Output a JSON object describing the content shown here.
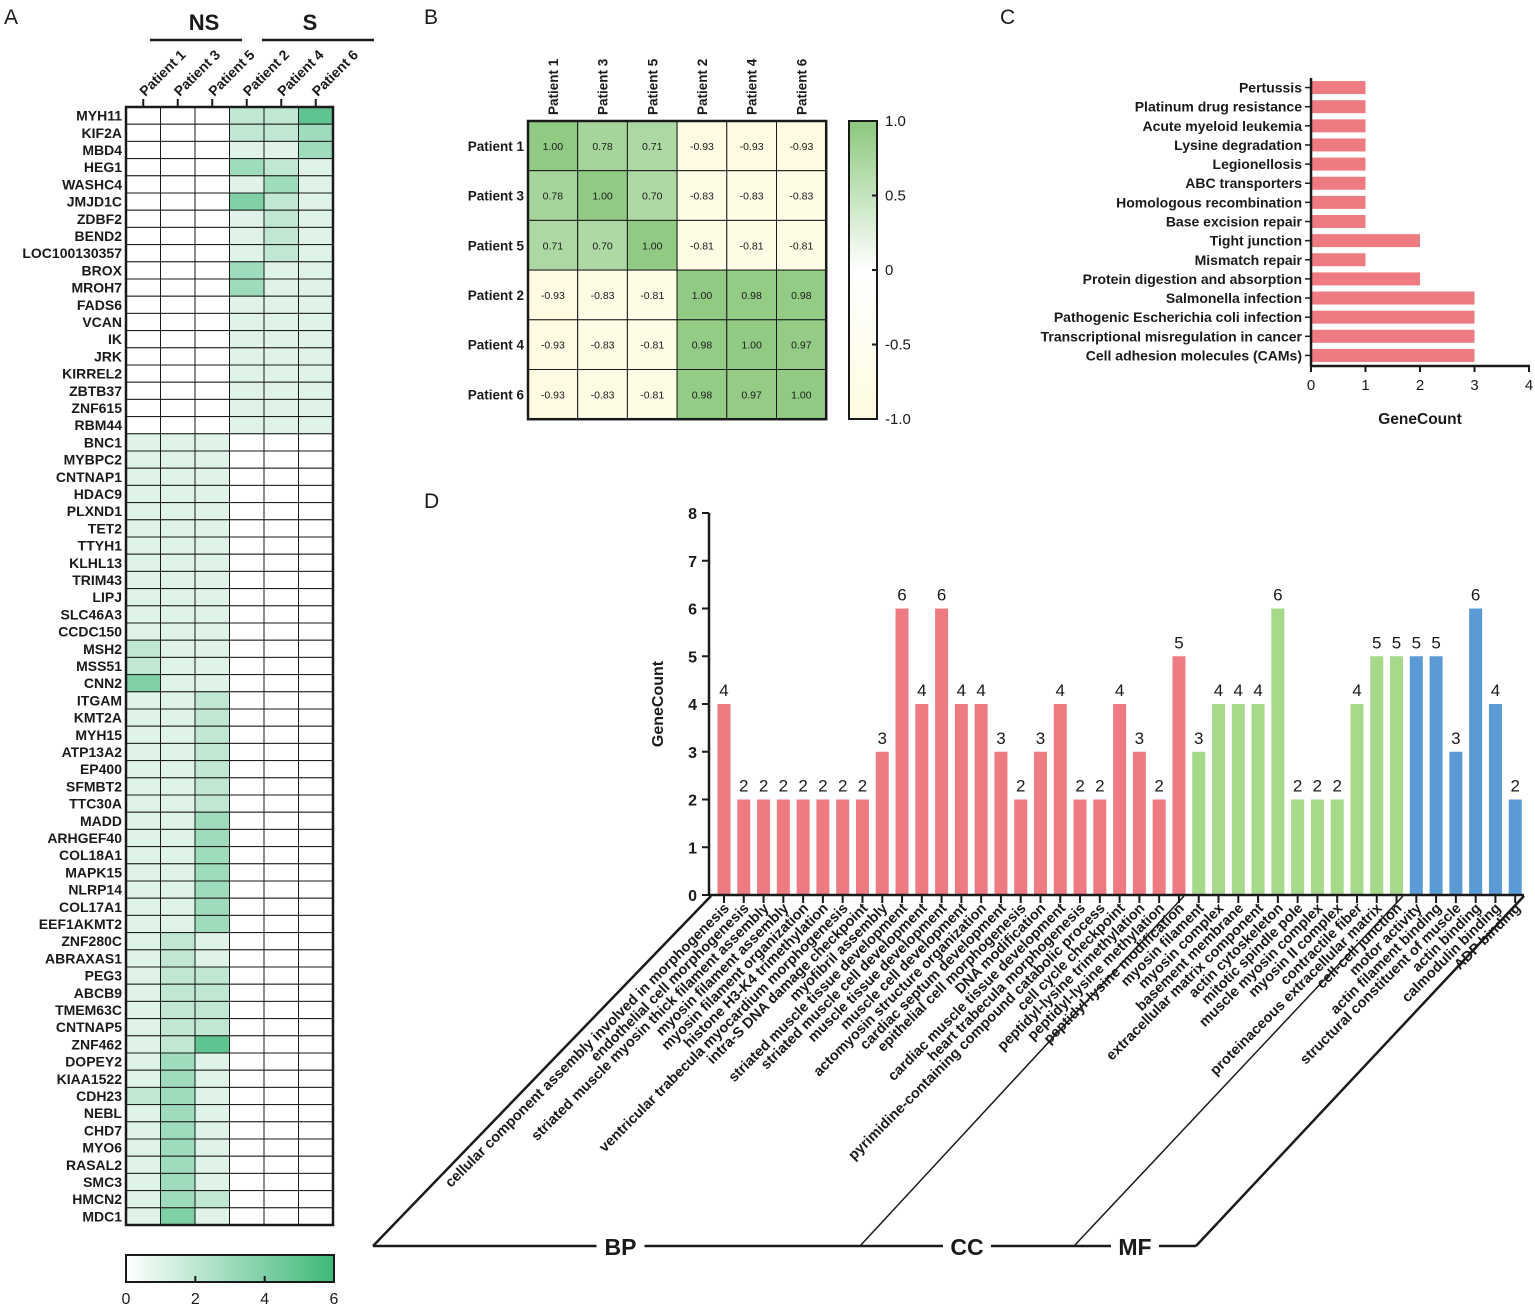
{
  "panels": {
    "a": "A",
    "b": "B",
    "c": "C",
    "d": "D"
  },
  "chart_data": [
    {
      "type": "heatmap",
      "panel": "A",
      "groups": [
        {
          "label": "NS",
          "columns": [
            "Patient 1",
            "Patient 3",
            "Patient 5"
          ]
        },
        {
          "label": "S",
          "columns": [
            "Patient 2",
            "Patient 4",
            "Patient 6"
          ]
        }
      ],
      "columns": [
        "Patient 1",
        "Patient 3",
        "Patient 5",
        "Patient 2",
        "Patient 4",
        "Patient 6"
      ],
      "rows": [
        "MYH11",
        "KIF2A",
        "MBD4",
        "HEG1",
        "WASHC4",
        "JMJD1C",
        "ZDBF2",
        "BEND2",
        "LOC100130357",
        "BROX",
        "MROH7",
        "FADS6",
        "VCAN",
        "IK",
        "JRK",
        "KIRREL2",
        "ZBTB37",
        "ZNF615",
        "RBM44",
        "BNC1",
        "MYBPC2",
        "CNTNAP1",
        "HDAC9",
        "PLXND1",
        "TET2",
        "TTYH1",
        "KLHL13",
        "TRIM43",
        "LIPJ",
        "SLC46A3",
        "CCDC150",
        "MSH2",
        "MSS51",
        "CNN2",
        "ITGAM",
        "KMT2A",
        "MYH15",
        "ATP13A2",
        "EP400",
        "SFMBT2",
        "TTC30A",
        "MADD",
        "ARHGEF40",
        "COL18A1",
        "MAPK15",
        "NLRP14",
        "COL17A1",
        "EEF1AKMT2",
        "ZNF280C",
        "ABRAXAS1",
        "PEG3",
        "ABCB9",
        "TMEM63C",
        "CNTNAP5",
        "ZNF462",
        "DOPEY2",
        "KIAA1522",
        "CDH23",
        "NEBL",
        "CHD7",
        "MYO6",
        "RASAL2",
        "SMC3",
        "HMCN2",
        "MDC1"
      ],
      "values": [
        [
          0,
          0,
          0,
          2,
          2,
          5
        ],
        [
          0,
          0,
          0,
          2,
          2,
          3
        ],
        [
          0,
          0,
          0,
          1,
          1,
          3
        ],
        [
          0,
          0,
          0,
          3,
          2,
          1
        ],
        [
          0,
          0,
          0,
          1,
          3,
          1
        ],
        [
          0,
          0,
          0,
          4,
          2,
          1
        ],
        [
          0,
          0,
          0,
          1,
          2,
          1
        ],
        [
          0,
          0,
          0,
          1,
          2,
          1
        ],
        [
          0,
          0,
          0,
          1,
          2,
          1
        ],
        [
          0,
          0,
          0,
          3,
          1,
          1
        ],
        [
          0,
          0,
          0,
          3,
          1,
          1
        ],
        [
          0,
          0,
          0,
          1,
          1,
          1
        ],
        [
          0,
          0,
          0,
          1,
          1,
          1
        ],
        [
          0,
          0,
          0,
          1,
          1,
          1
        ],
        [
          0,
          0,
          0,
          1,
          1,
          1
        ],
        [
          0,
          0,
          0,
          1,
          1,
          1
        ],
        [
          0,
          0,
          0,
          1,
          1,
          1
        ],
        [
          0,
          0,
          0,
          1,
          1,
          1
        ],
        [
          0,
          0,
          0,
          1,
          1,
          1
        ],
        [
          1,
          1,
          1,
          0,
          0,
          0
        ],
        [
          1,
          1,
          1,
          0,
          0,
          0
        ],
        [
          1,
          1,
          1,
          0,
          0,
          0
        ],
        [
          1,
          1,
          1,
          0,
          0,
          0
        ],
        [
          1,
          1,
          1,
          0,
          0,
          0
        ],
        [
          1,
          1,
          1,
          0,
          0,
          0
        ],
        [
          1,
          1,
          1,
          0,
          0,
          0
        ],
        [
          1,
          1,
          1,
          0,
          0,
          0
        ],
        [
          1,
          1,
          1,
          0,
          0,
          0
        ],
        [
          1,
          1,
          1,
          0,
          0,
          0
        ],
        [
          1,
          1,
          1,
          0,
          0,
          0
        ],
        [
          1,
          1,
          1,
          0,
          0,
          0
        ],
        [
          2,
          1,
          1,
          0,
          0,
          0
        ],
        [
          2,
          1,
          1,
          0,
          0,
          0
        ],
        [
          4,
          1,
          1,
          0,
          0,
          0
        ],
        [
          1,
          1,
          2,
          0,
          0,
          0
        ],
        [
          1,
          1,
          2,
          0,
          0,
          0
        ],
        [
          1,
          1,
          2,
          0,
          0,
          0
        ],
        [
          1,
          1,
          2,
          0,
          0,
          0
        ],
        [
          1,
          1,
          2,
          0,
          0,
          0
        ],
        [
          1,
          1,
          2,
          0,
          0,
          0
        ],
        [
          1,
          1,
          2,
          0,
          0,
          0
        ],
        [
          1,
          1,
          3,
          0,
          0,
          0
        ],
        [
          1,
          1,
          3,
          0,
          0,
          0
        ],
        [
          1,
          1,
          3,
          0,
          0,
          0
        ],
        [
          1,
          1,
          3,
          0,
          0,
          0
        ],
        [
          1,
          1,
          3,
          0,
          0,
          0
        ],
        [
          1,
          1,
          3,
          0,
          0,
          0
        ],
        [
          1,
          1,
          3,
          0,
          0,
          0
        ],
        [
          1,
          2,
          1,
          0,
          0,
          0
        ],
        [
          1,
          2,
          1,
          0,
          0,
          0
        ],
        [
          1,
          2,
          2,
          0,
          0,
          0
        ],
        [
          1,
          2,
          2,
          0,
          0,
          0
        ],
        [
          1,
          2,
          2,
          0,
          0,
          0
        ],
        [
          1,
          2,
          2,
          0,
          0,
          0
        ],
        [
          1,
          2,
          5,
          0,
          0,
          0
        ],
        [
          1,
          3,
          1,
          0,
          0,
          0
        ],
        [
          1,
          3,
          1,
          0,
          0,
          0
        ],
        [
          2,
          3,
          1,
          0,
          0,
          0
        ],
        [
          1,
          3,
          1,
          0,
          0,
          0
        ],
        [
          1,
          3,
          1,
          0,
          0,
          0
        ],
        [
          1,
          3,
          1,
          0,
          0,
          0
        ],
        [
          1,
          3,
          1,
          0,
          0,
          0
        ],
        [
          1,
          3,
          1,
          0,
          0,
          0
        ],
        [
          1,
          3,
          2,
          0,
          0,
          0
        ],
        [
          1,
          4,
          1,
          0,
          0,
          0
        ]
      ],
      "colorbar": {
        "min": 0,
        "max": 6,
        "ticks": [
          "0",
          "2",
          "4",
          "6"
        ],
        "low_color": "#ffffff",
        "high_color": "#3fb878"
      }
    },
    {
      "type": "heatmap",
      "panel": "B",
      "labels": [
        "Patient 1",
        "Patient 3",
        "Patient 5",
        "Patient 2",
        "Patient 4",
        "Patient 6"
      ],
      "values": [
        [
          1.0,
          0.78,
          0.71,
          -0.93,
          -0.93,
          -0.93
        ],
        [
          0.78,
          1.0,
          0.7,
          -0.83,
          -0.83,
          -0.83
        ],
        [
          0.71,
          0.7,
          1.0,
          -0.81,
          -0.81,
          -0.81
        ],
        [
          -0.93,
          -0.83,
          -0.81,
          1.0,
          0.98,
          0.98
        ],
        [
          -0.93,
          -0.83,
          -0.81,
          0.98,
          1.0,
          0.97
        ],
        [
          -0.93,
          -0.83,
          -0.81,
          0.98,
          0.97,
          1.0
        ]
      ],
      "cell_labels": [
        [
          "1.00",
          "0.78",
          "0.71",
          "-0.93",
          "-0.93",
          "-0.93"
        ],
        [
          "0.78",
          "1.00",
          "0.70",
          "-0.83",
          "-0.83",
          "-0.83"
        ],
        [
          "0.71",
          "0.70",
          "1.00",
          "-0.81",
          "-0.81",
          "-0.81"
        ],
        [
          "-0.93",
          "-0.83",
          "-0.81",
          "1.00",
          "0.98",
          "0.98"
        ],
        [
          "-0.93",
          "-0.83",
          "-0.81",
          "0.98",
          "1.00",
          "0.97"
        ],
        [
          "-0.93",
          "-0.83",
          "-0.81",
          "0.98",
          "0.97",
          "1.00"
        ]
      ],
      "colorbar": {
        "min": -1.0,
        "max": 1.0,
        "ticks": [
          "1.0",
          "0.5",
          "0",
          "-0.5",
          "-1.0"
        ],
        "tick_values": [
          1.0,
          0.5,
          0,
          -0.5,
          -1.0
        ],
        "low_color": "#fffbe0",
        "high_color": "#8bc87c"
      }
    },
    {
      "type": "bar",
      "orientation": "horizontal",
      "panel": "C",
      "categories": [
        "Pertussis",
        "Platinum drug resistance",
        "Acute myeloid leukemia",
        "Lysine degradation",
        "Legionellosis",
        "ABC transporters",
        "Homologous recombination",
        "Base excision repair",
        "Tight junction",
        "Mismatch repair",
        "Protein digestion and absorption",
        "Salmonella infection",
        "Pathogenic Escherichia coli infection",
        "Transcriptional misregulation in cancer",
        "Cell adhesion molecules (CAMs)"
      ],
      "values": [
        1,
        1,
        1,
        1,
        1,
        1,
        1,
        1,
        2,
        1,
        2,
        3,
        3,
        3,
        3
      ],
      "xlabel": "GeneCount",
      "xlim": [
        0,
        4
      ],
      "xticks": [
        "0",
        "1",
        "2",
        "3",
        "4"
      ],
      "color": "#ef7b82"
    },
    {
      "type": "bar",
      "panel": "D",
      "ylabel": "GeneCount",
      "ylim": [
        0,
        8
      ],
      "yticks": [
        "0",
        "1",
        "2",
        "3",
        "4",
        "5",
        "6",
        "7",
        "8"
      ],
      "categories": [
        "cellular component assembly involved in morphogenesis",
        "endothelial cell morphogenesis",
        "striated muscle myosin thick filament assembly",
        "myosin filament assembly",
        "myosin filament organization",
        "histone H3-K4 trimethylation",
        "ventricular trabecula myocardium morphogenesis",
        "intra-S DNA damage checkpoint",
        "myofibril assembly",
        "striated muscle tissue development",
        "striated muscle cell development",
        "muscle tissue development",
        "muscle cell development",
        "actomyosin structure organization",
        "cardiac septum development",
        "epithelial cell morphogenesis",
        "DNA modification",
        "cardiac muscle tissue development",
        "heart trabecula morphogenesis",
        "pyrimidine-containing compound catabolic process",
        "cell cycle checkpoint",
        "peptidyl-lysine trimethylation",
        "peptidyl-lysine methylation",
        "peptidyl-lysine modification",
        "myosin filament",
        "myosin complex",
        "basement membrane",
        "extracellular matrix component",
        "actin cytoskeleton",
        "mitotic spindle pole",
        "muscle myosin complex",
        "myosin II complex",
        "contractile fiber",
        "proteinaceous extracellular matrix",
        "cell-cell junction",
        "motor activity",
        "actin filament binding",
        "structural constituent of muscle",
        "actin binding",
        "calmodulin binding",
        "ADP binding"
      ],
      "values": [
        4,
        2,
        2,
        2,
        2,
        2,
        2,
        2,
        3,
        6,
        4,
        6,
        4,
        4,
        3,
        2,
        3,
        4,
        2,
        2,
        4,
        3,
        2,
        5,
        3,
        4,
        4,
        4,
        6,
        2,
        2,
        2,
        4,
        5,
        5,
        5,
        5,
        3,
        6,
        4,
        2
      ],
      "value_labels": [
        "4",
        "2",
        "2",
        "2",
        "2",
        "2",
        "2",
        "2",
        "3",
        "6",
        "4",
        "6",
        "4",
        "4",
        "3",
        "2",
        "3",
        "4",
        "2",
        "2",
        "4",
        "3",
        "2",
        "5",
        "3",
        "4",
        "4",
        "4",
        "6",
        "2",
        "2",
        "2",
        "4",
        "5",
        "5",
        "5",
        "5",
        "3",
        "6",
        "4",
        "2"
      ],
      "groups": [
        {
          "name": "BP",
          "start": 0,
          "end": 23,
          "color": "#ef7b82"
        },
        {
          "name": "CC",
          "start": 24,
          "end": 34,
          "color": "#a6d98a"
        },
        {
          "name": "MF",
          "start": 35,
          "end": 40,
          "color": "#5b9bd5"
        }
      ]
    }
  ]
}
